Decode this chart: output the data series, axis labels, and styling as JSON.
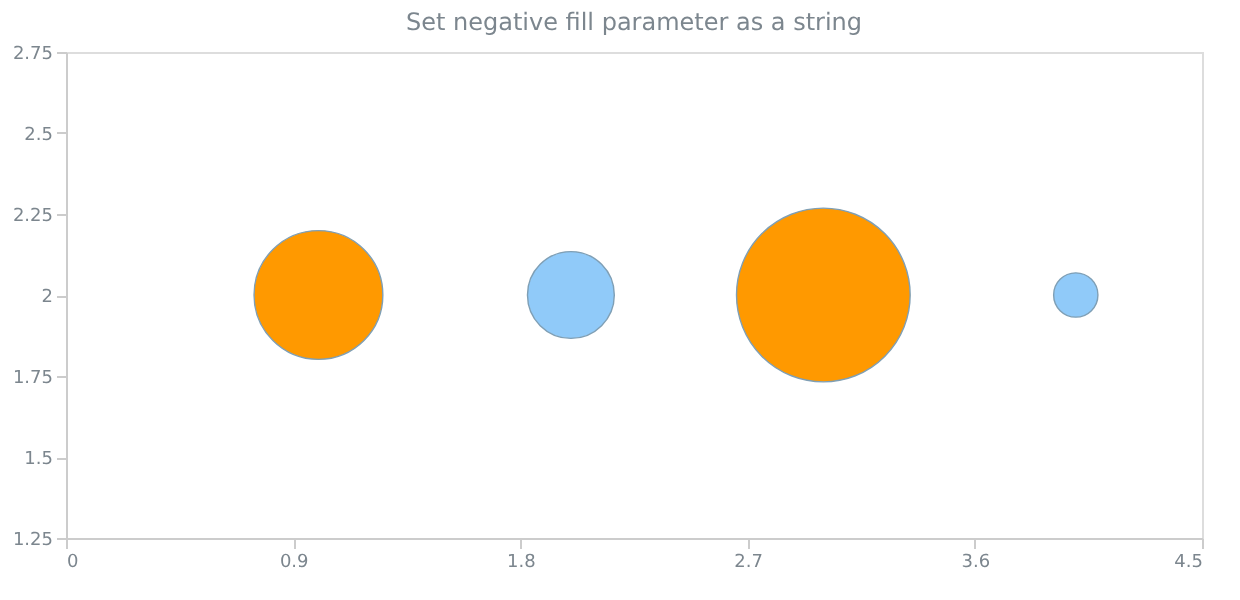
{
  "chart_data": {
    "type": "bubble",
    "title": "Set negative fill parameter as a string",
    "x": [
      1,
      2,
      3,
      4
    ],
    "values": [
      2,
      2,
      2,
      2
    ],
    "sizes": [
      0.55,
      0.25,
      1,
      0.065
    ],
    "colors": [
      "#ff9900",
      "#90caf9",
      "#ff9900",
      "#90caf9"
    ],
    "xlim": [
      0,
      4.5
    ],
    "xticks": [
      0,
      0.9,
      1.8,
      2.7,
      3.6,
      4.5
    ],
    "ylim": [
      1.25,
      2.75
    ],
    "yticks": [
      1.25,
      1.5,
      1.75,
      2,
      2.25,
      2.5,
      2.75
    ],
    "grid": false
  }
}
